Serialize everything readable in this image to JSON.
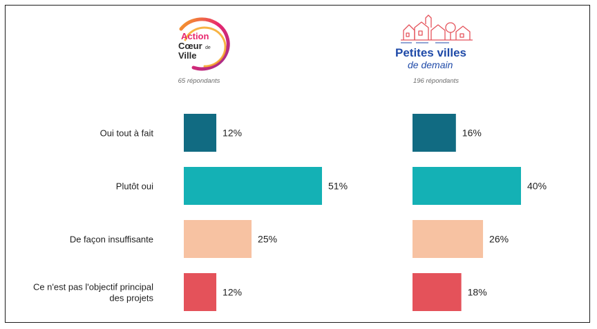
{
  "logos": {
    "left": {
      "line1": "Action",
      "line2": "Cœur",
      "line3": "de",
      "line4": "Ville"
    },
    "right": {
      "line1": "Petites villes",
      "line2": "de demain"
    }
  },
  "colors": {
    "Oui tout à fait": "#116b82",
    "Plutôt oui": "#14b1b5",
    "De façon insuffisante": "#f7c2a2",
    "Ce n'est pas l'objectif principal des projets": "#e4525a",
    "text": "#1f1f1f",
    "subtext": "#6b6b6b",
    "acv_gradient": [
      "#f6a623",
      "#e8266d",
      "#9b2e8f"
    ],
    "pvd_red": "#e4525a",
    "pvd_blue": "#1f4aa8"
  },
  "chart_data": [
    {
      "type": "bar",
      "orientation": "horizontal",
      "panel": "Action Cœur de Ville",
      "subtitle": "65 répondants",
      "categories": [
        "Oui tout à fait",
        "Plutôt oui",
        "De façon insuffisante",
        "Ce n'est pas l'objectif principal des projets"
      ],
      "category_lines": [
        [
          "Oui tout à fait"
        ],
        [
          "Plutôt oui"
        ],
        [
          "De façon insuffisante"
        ],
        [
          "Ce n'est pas l'objectif principal",
          "des projets"
        ]
      ],
      "values": [
        12,
        51,
        25,
        12
      ],
      "value_labels": [
        "12%",
        "51%",
        "25%",
        "12%"
      ],
      "unit": "%",
      "xlim": [
        0,
        100
      ],
      "grid": false,
      "legend": "none"
    },
    {
      "type": "bar",
      "orientation": "horizontal",
      "panel": "Petites villes de demain",
      "subtitle": "196 répondants",
      "categories": [
        "Oui tout à fait",
        "Plutôt oui",
        "De façon insuffisante",
        "Ce n'est pas l'objectif principal des projets"
      ],
      "values": [
        16,
        40,
        26,
        18
      ],
      "value_labels": [
        "16%",
        "40%",
        "26%",
        "18%"
      ],
      "unit": "%",
      "xlim": [
        0,
        100
      ],
      "grid": false,
      "legend": "none"
    }
  ]
}
